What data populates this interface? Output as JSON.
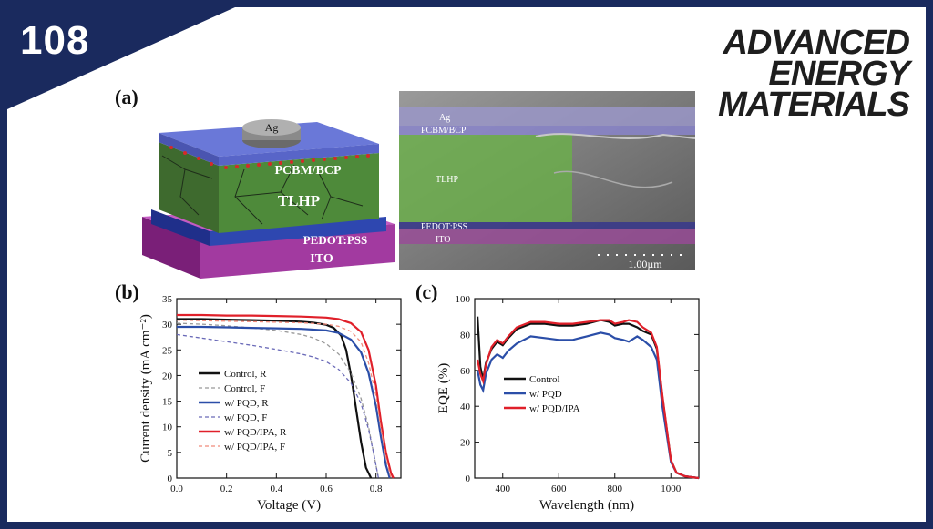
{
  "badge": "108",
  "brand": {
    "line1": "ADVANCED",
    "line2": "ENERGY",
    "line3": "MATERIALS"
  },
  "panel_a": {
    "label": "(a)",
    "layers": {
      "ag": "Ag",
      "pcbm": "PCBM/BCP",
      "tlhp": "TLHP",
      "pedot": "PEDOT:PSS",
      "ito": "ITO"
    },
    "sem_layers": [
      "Ag",
      "PCBM/BCP",
      "TLHP",
      "PEDOT:PSS",
      "ITO"
    ],
    "scale_bar": "1.00µm"
  },
  "chart_data": [
    {
      "type": "line",
      "panel_label": "(b)",
      "xlabel": "Voltage (V)",
      "ylabel": "Current density (mA cm⁻²)",
      "xlim": [
        0.0,
        0.9
      ],
      "ylim": [
        0,
        35
      ],
      "xticks": [
        "0.0",
        "0.2",
        "0.4",
        "0.6",
        "0.8"
      ],
      "yticks": [
        "0",
        "5",
        "10",
        "15",
        "20",
        "25",
        "30",
        "35"
      ],
      "legend": "middle-left",
      "series": [
        {
          "name": "Control, R",
          "color": "#111111",
          "dash": false,
          "x": [
            0,
            0.1,
            0.2,
            0.3,
            0.4,
            0.5,
            0.55,
            0.6,
            0.63,
            0.66,
            0.68,
            0.7,
            0.72,
            0.74,
            0.76,
            0.78
          ],
          "y": [
            31.0,
            31.0,
            30.9,
            30.8,
            30.7,
            30.5,
            30.3,
            29.9,
            29.3,
            27.8,
            25.0,
            20.0,
            13.5,
            7.0,
            2.0,
            0
          ]
        },
        {
          "name": "Control, F",
          "color": "#999999",
          "dash": true,
          "x": [
            0,
            0.1,
            0.2,
            0.3,
            0.4,
            0.5,
            0.55,
            0.6,
            0.65,
            0.7,
            0.74,
            0.77,
            0.79,
            0.81
          ],
          "y": [
            30.2,
            30.0,
            29.7,
            29.3,
            28.8,
            28.0,
            27.3,
            26.2,
            24.2,
            20.5,
            15.5,
            10.0,
            5.0,
            0
          ]
        },
        {
          "name": "w/ PQD, R",
          "color": "#2b4ea8",
          "dash": false,
          "x": [
            0,
            0.1,
            0.2,
            0.3,
            0.4,
            0.5,
            0.6,
            0.65,
            0.7,
            0.74,
            0.77,
            0.8,
            0.82,
            0.84,
            0.855
          ],
          "y": [
            29.5,
            29.5,
            29.4,
            29.3,
            29.2,
            29.1,
            28.8,
            28.3,
            27.0,
            24.5,
            20.5,
            14.0,
            8.0,
            2.5,
            0
          ]
        },
        {
          "name": "w/ PQD, F",
          "color": "#6a6ab8",
          "dash": true,
          "x": [
            0,
            0.1,
            0.2,
            0.3,
            0.4,
            0.5,
            0.55,
            0.6,
            0.65,
            0.7,
            0.74,
            0.77,
            0.79,
            0.81
          ],
          "y": [
            28.0,
            27.3,
            26.6,
            25.9,
            25.1,
            24.2,
            23.6,
            22.7,
            21.2,
            18.5,
            14.5,
            9.5,
            5.0,
            0
          ]
        },
        {
          "name": "w/ PQD/IPA, R",
          "color": "#e0202a",
          "dash": false,
          "x": [
            0,
            0.1,
            0.2,
            0.3,
            0.4,
            0.5,
            0.6,
            0.65,
            0.7,
            0.74,
            0.77,
            0.8,
            0.82,
            0.84,
            0.86,
            0.87
          ],
          "y": [
            31.8,
            31.8,
            31.7,
            31.7,
            31.6,
            31.5,
            31.3,
            31.0,
            30.2,
            28.5,
            25.0,
            18.0,
            11.0,
            5.0,
            1.0,
            0
          ]
        },
        {
          "name": "w/ PQD/IPA, F",
          "color": "#f08a7a",
          "dash": true,
          "x": [
            0,
            0.1,
            0.2,
            0.3,
            0.4,
            0.5,
            0.6,
            0.65,
            0.7,
            0.74,
            0.77,
            0.8,
            0.82,
            0.84,
            0.86
          ],
          "y": [
            30.8,
            30.7,
            30.6,
            30.5,
            30.4,
            30.3,
            30.0,
            29.6,
            28.6,
            26.5,
            22.5,
            16.0,
            9.5,
            4.0,
            0
          ]
        }
      ]
    },
    {
      "type": "line",
      "panel_label": "(c)",
      "xlabel": "Wavelength (nm)",
      "ylabel": "EQE (%)",
      "xlim": [
        300,
        1100
      ],
      "ylim": [
        0,
        100
      ],
      "xticks": [
        "400",
        "600",
        "800",
        "1000"
      ],
      "yticks": [
        "0",
        "20",
        "40",
        "60",
        "80",
        "100"
      ],
      "legend": "middle-left",
      "series": [
        {
          "name": "Control",
          "color": "#111111",
          "x": [
            310,
            320,
            330,
            340,
            360,
            380,
            400,
            420,
            450,
            500,
            550,
            600,
            650,
            700,
            750,
            780,
            800,
            830,
            850,
            880,
            900,
            930,
            950,
            970,
            1000,
            1020,
            1050,
            1100
          ],
          "y": [
            90,
            62,
            55,
            64,
            72,
            76,
            74,
            78,
            83,
            86,
            86,
            85,
            85,
            86,
            88,
            87,
            85,
            86,
            86,
            84,
            82,
            80,
            72,
            45,
            10,
            3,
            1,
            0
          ]
        },
        {
          "name": "w/ PQD",
          "color": "#2b4ea8",
          "x": [
            310,
            320,
            330,
            340,
            360,
            380,
            400,
            420,
            450,
            500,
            550,
            600,
            650,
            700,
            750,
            780,
            800,
            830,
            850,
            880,
            900,
            930,
            950,
            970,
            1000,
            1020,
            1050,
            1100
          ],
          "y": [
            60,
            52,
            49,
            58,
            66,
            69,
            67,
            71,
            75,
            79,
            78,
            77,
            77,
            79,
            81,
            80,
            78,
            77,
            76,
            79,
            77,
            73,
            66,
            40,
            9,
            3,
            1,
            0
          ]
        },
        {
          "name": "w/ PQD/IPA",
          "color": "#e0202a",
          "x": [
            310,
            320,
            330,
            340,
            360,
            380,
            400,
            420,
            450,
            500,
            550,
            600,
            650,
            700,
            750,
            780,
            800,
            830,
            850,
            880,
            900,
            930,
            950,
            970,
            1000,
            1020,
            1050,
            1100
          ],
          "y": [
            66,
            58,
            54,
            63,
            73,
            77,
            75,
            79,
            84,
            87,
            87,
            86,
            86,
            87,
            88,
            88,
            86,
            87,
            88,
            87,
            84,
            81,
            73,
            46,
            10,
            3,
            1,
            0
          ]
        }
      ]
    }
  ]
}
